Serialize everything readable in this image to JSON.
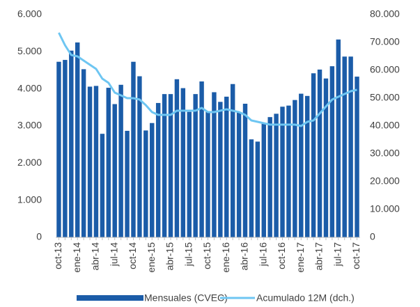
{
  "chart_data": {
    "type": "bar_line",
    "categories": [
      "oct-13",
      null,
      null,
      "ene-14",
      null,
      null,
      "abr-14",
      null,
      null,
      "jul-14",
      null,
      null,
      "oct-14",
      null,
      null,
      "ene-15",
      null,
      null,
      "abr-15",
      null,
      null,
      "jul-15",
      null,
      null,
      "oct-15",
      null,
      null,
      "ene-16",
      null,
      null,
      "abr-16",
      null,
      null,
      "jul-16",
      null,
      null,
      "oct-16",
      null,
      null,
      "ene-17",
      null,
      null,
      "abr-17",
      null,
      null,
      "jul-17",
      null,
      null,
      "oct-17"
    ],
    "series": [
      {
        "name": "Mensuales (CVEC)",
        "color": "#1b5ca8",
        "type": "bar",
        "values": [
          4730,
          4780,
          5030,
          5250,
          4530,
          4060,
          4080,
          2790,
          4030,
          3590,
          4110,
          2870,
          4730,
          4340,
          2880,
          3080,
          3620,
          3860,
          3860,
          4260,
          4020,
          3380,
          3860,
          4200,
          3380,
          3910,
          3650,
          3790,
          4130,
          3360,
          3600,
          2640,
          2580,
          3080,
          3240,
          3330,
          3520,
          3550,
          3700,
          3870,
          3810,
          4420,
          4520,
          4280,
          4610,
          5330,
          4870,
          4870,
          4330
        ]
      },
      {
        "name": "Acumulado 12M (dch.)",
        "color": "#6ec6f2",
        "type": "line",
        "axis": "y2",
        "values": [
          73500,
          69000,
          65500,
          65000,
          63500,
          62000,
          60500,
          57000,
          55500,
          52000,
          51000,
          50000,
          50000,
          49500,
          47500,
          45000,
          44000,
          44000,
          44000,
          45500,
          45500,
          45500,
          45500,
          46500,
          45000,
          45000,
          45500,
          46000,
          45500,
          45000,
          44000,
          42000,
          41500,
          41000,
          40500,
          40500,
          40500,
          40500,
          40500,
          40000,
          41500,
          42000,
          44500,
          47000,
          49500,
          50500,
          51500,
          52500,
          53000
        ]
      }
    ],
    "ylim": [
      0,
      6000
    ],
    "yticks": [
      0,
      {
        "value": 1000,
        "label": "1.000"
      },
      {
        "value": 2000,
        "label": "2.000"
      },
      {
        "value": 3000,
        "label": "3.000"
      },
      {
        "value": 4000,
        "label": "4.000"
      },
      {
        "value": 5000,
        "label": "5.000"
      },
      {
        "value": 6000,
        "label": "6.000"
      }
    ],
    "y2lim": [
      0,
      80000
    ],
    "y2ticks": [
      0,
      {
        "value": 10000,
        "label": "10.000"
      },
      {
        "value": 20000,
        "label": "20.000"
      },
      {
        "value": 30000,
        "label": "30.000"
      },
      {
        "value": 40000,
        "label": "40.000"
      },
      {
        "value": 50000,
        "label": "50.000"
      },
      {
        "value": 60000,
        "label": "60.000"
      },
      {
        "value": 70000,
        "label": "70.000"
      },
      {
        "value": 80000,
        "label": "80.000"
      }
    ],
    "grid": false,
    "legend": "bottom"
  }
}
